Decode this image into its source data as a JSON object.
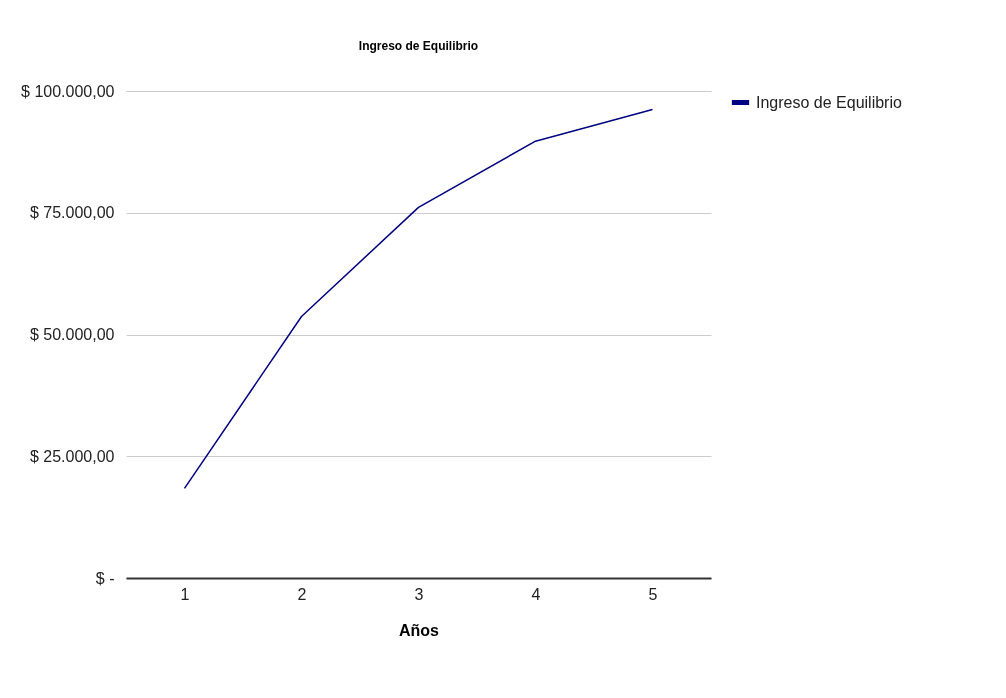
{
  "chart_data": {
    "type": "line",
    "title": "Ingreso de Equilibrio",
    "xlabel": "Años",
    "categories": [
      "1",
      "2",
      "3",
      "4",
      "5"
    ],
    "series": [
      {
        "name": "Ingreso de Equilibrio",
        "color": "#000080",
        "values": [
          18400,
          53700,
          76100,
          89700,
          96200
        ]
      }
    ],
    "ylim": [
      0,
      100000
    ],
    "yticks": [
      {
        "value": 0,
        "label": "$ -"
      },
      {
        "value": 25000,
        "label": "$ 25.000,00"
      },
      {
        "value": 50000,
        "label": "$ 50.000,00"
      },
      {
        "value": 75000,
        "label": "$ 75.000,00"
      },
      {
        "value": 100000,
        "label": "$ 100.000,00"
      }
    ],
    "grid": "y",
    "legend": "top right",
    "marker": "none",
    "line_style": "solid"
  }
}
